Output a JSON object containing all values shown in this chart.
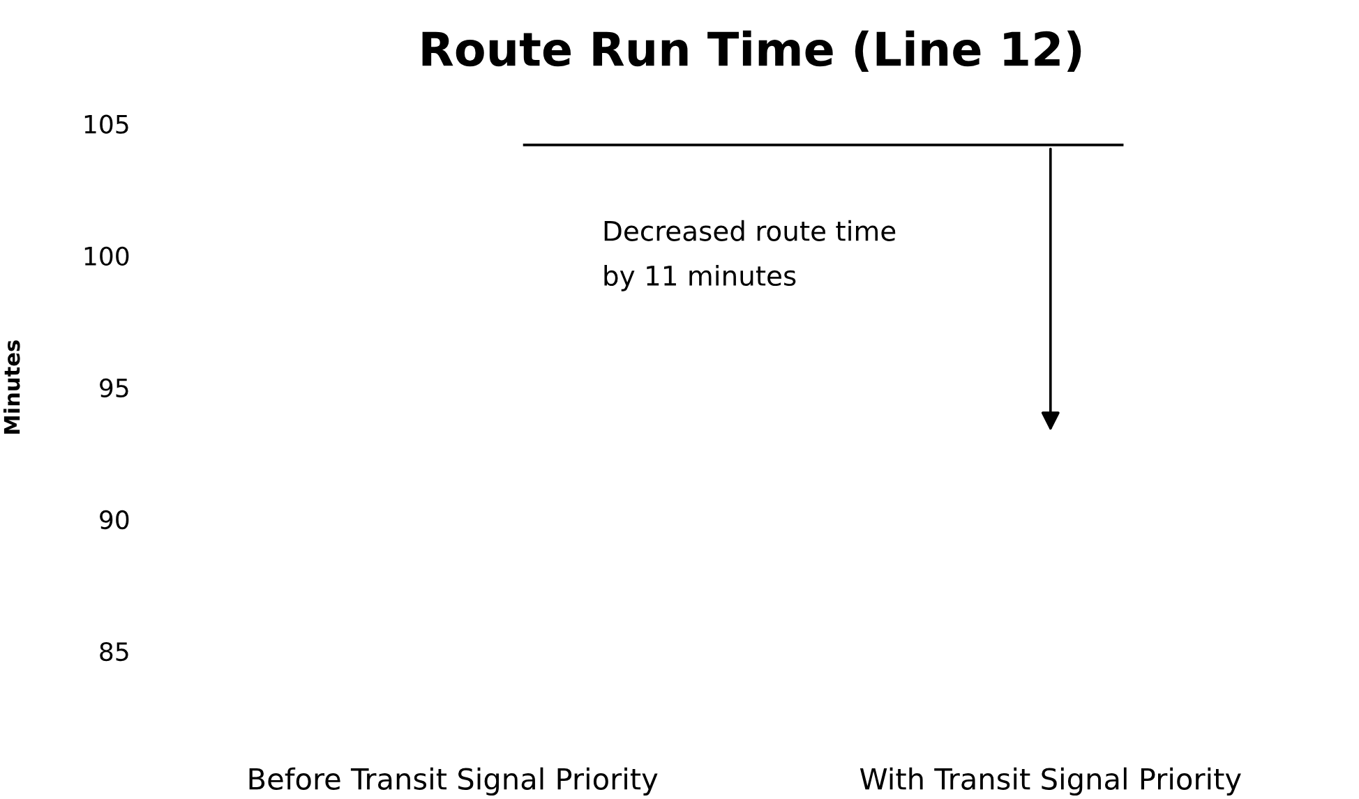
{
  "chart_data": {
    "type": "bar",
    "title": "Route Run Time (Line 12)",
    "ylabel": "Minutes",
    "categories": [
      "Before Transit Signal Priority",
      "With Transit Signal Priority"
    ],
    "values": [
      null,
      null
    ],
    "ylim": [
      85,
      105
    ],
    "yticks": [
      85,
      90,
      95,
      100,
      105
    ],
    "ref_lines": [
      {
        "axis": "y",
        "value": 104.2,
        "color": "#000000"
      }
    ],
    "annotations": [
      "Decreased route time\nby 11 minutes"
    ]
  }
}
